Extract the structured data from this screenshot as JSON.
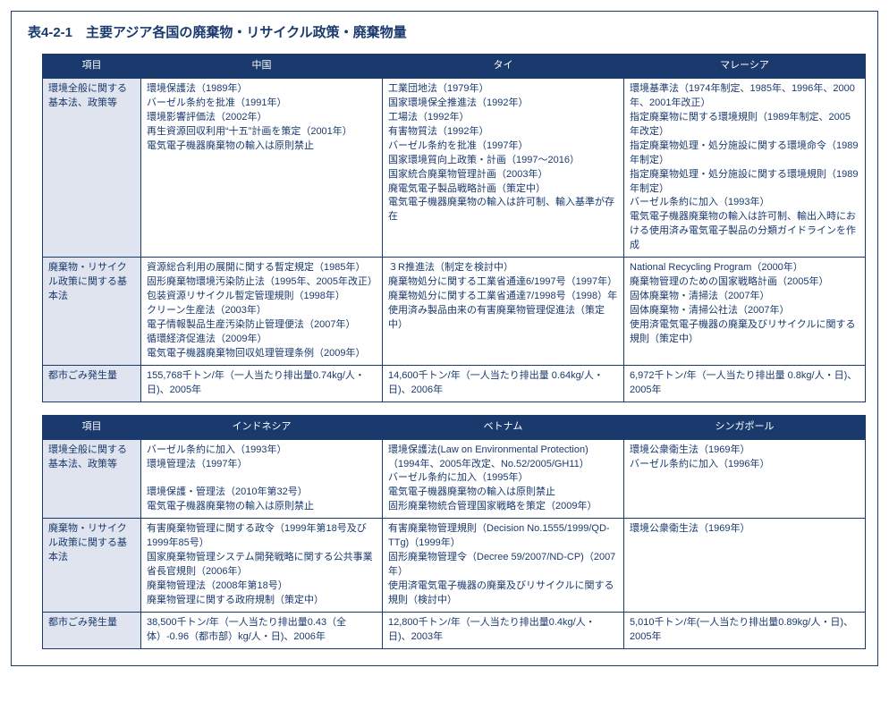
{
  "title": "表4-2-1　主要アジア各国の廃棄物・リサイクル政策・廃棄物量",
  "colors": {
    "primary": "#1a3a6e",
    "header_bg": "#1a3a6e",
    "header_text": "#ffffff",
    "rowhead_bg": "#dfe4ef",
    "border": "#1a3a6e",
    "text": "#1a3a6e",
    "background": "#ffffff"
  },
  "font_size_title": 15,
  "font_size_body": 11,
  "table1": {
    "headers": [
      "項目",
      "中国",
      "タイ",
      "マレーシア"
    ],
    "rows": [
      {
        "label": "環境全般に関する基本法、政策等",
        "cells": [
          [
            "環境保護法（1989年）",
            "バーゼル条約を批准（1991年）",
            "環境影響評価法（2002年）",
            "再生資源回収利用“十五”計画を策定（2001年）",
            "電気電子機器廃棄物の輸入は原則禁止"
          ],
          [
            "工業団地法（1979年）",
            "国家環境保全推進法（1992年）",
            "工場法（1992年）",
            "有害物質法（1992年）",
            "バーゼル条約を批准（1997年）",
            "国家環境質向上政策・計画（1997～2016）",
            "国家統合廃棄物管理計画（2003年）",
            "廃電気電子製品戦略計画（策定中）",
            "電気電子機器廃棄物の輸入は許可制、輸入基準が存在"
          ],
          [
            "環境基準法（1974年制定、1985年、1996年、2000年、2001年改正）",
            "指定廃棄物に関する環境規則（1989年制定、2005年改定）",
            "指定廃棄物処理・処分施設に関する環境命令（1989年制定）",
            "指定廃棄物処理・処分施設に関する環境規則（1989年制定）",
            "バーゼル条約に加入（1993年）",
            "電気電子機器廃棄物の輸入は許可制、輸出入時における使用済み電気電子製品の分類ガイドラインを作成"
          ]
        ]
      },
      {
        "label": "廃棄物・リサイクル政策に関する基本法",
        "cells": [
          [
            "資源総合利用の展開に関する暫定規定（1985年）",
            "固形廃棄物環境汚染防止法（1995年、2005年改正）",
            "包装資源リサイクル暫定管理規則（1998年）",
            "クリーン生産法（2003年）",
            "電子情報製品生産汚染防止管理便法（2007年）",
            "循環経済促進法（2009年）",
            "電気電子機器廃棄物回収処理管理条例（2009年）"
          ],
          [
            "３R推進法（制定を検討中）",
            "廃棄物処分に関する工業省通達6/1997号（1997年）",
            "廃棄物処分に関する工業省通達7/1998号（1998）年",
            "使用済み製品由来の有害廃棄物管理促進法（策定中）"
          ],
          [
            "National Recycling Program（2000年）",
            "廃棄物管理のための国家戦略計画（2005年）",
            "固体廃棄物・清掃法（2007年）",
            "固体廃棄物・清掃公社法（2007年）",
            "使用済電気電子機器の廃棄及びリサイクルに関する規則（策定中）"
          ]
        ]
      },
      {
        "label": "都市ごみ発生量",
        "cells": [
          [
            "155,768千トン/年（一人当たり排出量0.74kg/人・日)、2005年"
          ],
          [
            "14,600千トン/年（一人当たり排出量 0.64kg/人・日)、2006年"
          ],
          [
            "6,972千トン/年（一人当たり排出量 0.8kg/人・日)、2005年"
          ]
        ]
      }
    ]
  },
  "table2": {
    "headers": [
      "項目",
      "インドネシア",
      "ベトナム",
      "シンガポール"
    ],
    "rows": [
      {
        "label": "環境全般に関する基本法、政策等",
        "cells": [
          [
            "バーゼル条約に加入（1993年）",
            "環境管理法（1997年）",
            " ",
            "環境保護・管理法（2010年第32号）",
            "電気電子機器廃棄物の輸入は原則禁止"
          ],
          [
            "環境保護法(Law on Environmental Protection)（1994年、2005年改定、No.52/2005/GH11）",
            "バーゼル条約に加入（1995年）",
            "電気電子機器廃棄物の輸入は原則禁止",
            "固形廃棄物統合管理国家戦略を策定（2009年）"
          ],
          [
            "環境公衆衛生法（1969年）",
            "バーゼル条約に加入（1996年）"
          ]
        ]
      },
      {
        "label": "廃棄物・リサイクル政策に関する基本法",
        "cells": [
          [
            "有害廃棄物管理に関する政令（1999年第18号及び1999年85号）",
            "国家廃棄物管理システム開発戦略に関する公共事業省長官規則（2006年）",
            "廃棄物管理法（2008年第18号）",
            "廃棄物管理に関する政府規制（策定中）"
          ],
          [
            "有害廃棄物管理規則（Decision No.1555/1999/QD-TTg)（1999年）",
            "固形廃棄物管理令（Decree 59/2007/ND-CP)（2007年）",
            "使用済電気電子機器の廃棄及びリサイクルに関する規則（検討中）"
          ],
          [
            "環境公衆衛生法（1969年）"
          ]
        ]
      },
      {
        "label": "都市ごみ発生量",
        "cells": [
          [
            "38,500千トン/年（一人当たり排出量0.43（全体）-0.96（都市部）kg/人・日)、2006年"
          ],
          [
            "12,800千トン/年（一人当たり排出量0.4kg/人・日)、2003年"
          ],
          [
            "5,010千トン/年(一人当たり排出量0.89kg/人・日)、2005年"
          ]
        ]
      }
    ]
  }
}
